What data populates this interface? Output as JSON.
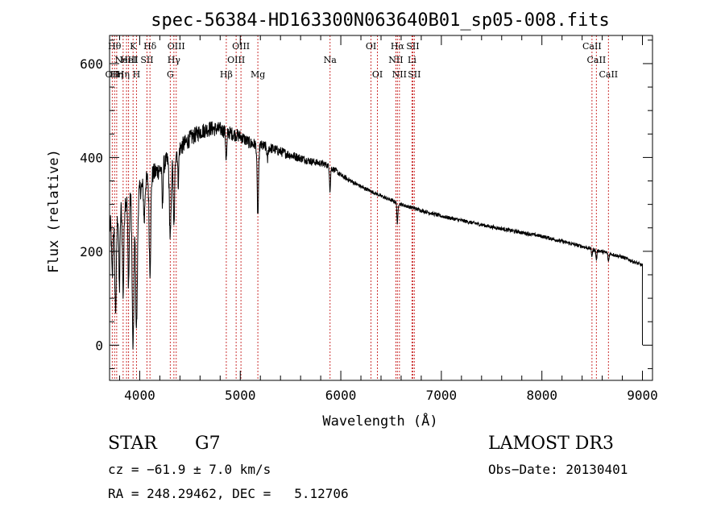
{
  "chart_data": {
    "type": "line",
    "title": "spec-56384-HD163300N063640B01_sp05-008.fits",
    "xlabel": "Wavelength (Å)",
    "ylabel": "Flux (relative)",
    "xlim": [
      3700,
      9100
    ],
    "ylim": [
      -75,
      660
    ],
    "xticks": [
      4000,
      5000,
      6000,
      7000,
      8000,
      9000
    ],
    "yticks": [
      0,
      200,
      400,
      600
    ],
    "xminor_step": 200,
    "yminor_step": 50,
    "colors": {
      "line_marker": "#cc3333",
      "spectrum": "#000000"
    },
    "line_markers": [
      {
        "wavelength": 3727,
        "label": "OII",
        "row": 2
      },
      {
        "wavelength": 3750,
        "label": "Hθ",
        "row": 0
      },
      {
        "wavelength": 3771,
        "label": "Hη",
        "row": 2
      },
      {
        "wavelength": 3835,
        "label": "Hη",
        "row": 2
      },
      {
        "wavelength": 3869,
        "label": "NeIII",
        "row": 1
      },
      {
        "wavelength": 3889,
        "label": "HeI",
        "row": 1
      },
      {
        "wavelength": 3934,
        "label": "K",
        "row": 0
      },
      {
        "wavelength": 3968,
        "label": "H",
        "row": 2
      },
      {
        "wavelength": 4072,
        "label": "SII",
        "row": 1
      },
      {
        "wavelength": 4102,
        "label": "Hδ",
        "row": 0
      },
      {
        "wavelength": 4304,
        "label": "G",
        "row": 2
      },
      {
        "wavelength": 4340,
        "label": "Hγ",
        "row": 1
      },
      {
        "wavelength": 4363,
        "label": "OIII",
        "row": 0
      },
      {
        "wavelength": 4861,
        "label": "Hβ",
        "row": 2
      },
      {
        "wavelength": 4959,
        "label": "OIII",
        "row": 1
      },
      {
        "wavelength": 5007,
        "label": "OIII",
        "row": 0
      },
      {
        "wavelength": 5175,
        "label": "Mg",
        "row": 2
      },
      {
        "wavelength": 5893,
        "label": "Na",
        "row": 1
      },
      {
        "wavelength": 6300,
        "label": "OI",
        "row": 0
      },
      {
        "wavelength": 6364,
        "label": "OI",
        "row": 2
      },
      {
        "wavelength": 6548,
        "label": "NII",
        "row": 1
      },
      {
        "wavelength": 6563,
        "label": "Hα",
        "row": 0
      },
      {
        "wavelength": 6583,
        "label": "NII",
        "row": 2
      },
      {
        "wavelength": 6708,
        "label": "Li",
        "row": 1
      },
      {
        "wavelength": 6716,
        "label": "SII",
        "row": 0
      },
      {
        "wavelength": 6731,
        "label": "SII",
        "row": 2
      },
      {
        "wavelength": 8498,
        "label": "CaII",
        "row": 0
      },
      {
        "wavelength": 8542,
        "label": "CaII",
        "row": 1
      },
      {
        "wavelength": 8662,
        "label": "CaII",
        "row": 2
      }
    ],
    "continuum_points": [
      [
        3700,
        250
      ],
      [
        3800,
        290
      ],
      [
        3900,
        320
      ],
      [
        4000,
        330
      ],
      [
        4100,
        360
      ],
      [
        4200,
        375
      ],
      [
        4300,
        400
      ],
      [
        4400,
        420
      ],
      [
        4500,
        440
      ],
      [
        4600,
        455
      ],
      [
        4700,
        462
      ],
      [
        4800,
        460
      ],
      [
        4900,
        452
      ],
      [
        5000,
        445
      ],
      [
        5100,
        430
      ],
      [
        5200,
        425
      ],
      [
        5300,
        420
      ],
      [
        5500,
        405
      ],
      [
        5700,
        392
      ],
      [
        5850,
        385
      ],
      [
        5950,
        372
      ],
      [
        6000,
        362
      ],
      [
        6200,
        338
      ],
      [
        6400,
        318
      ],
      [
        6600,
        300
      ],
      [
        6800,
        287
      ],
      [
        7000,
        275
      ],
      [
        7500,
        252
      ],
      [
        8000,
        232
      ],
      [
        8500,
        205
      ],
      [
        8800,
        188
      ],
      [
        9000,
        170
      ]
    ],
    "absorption_features": [
      {
        "center": 3727,
        "depth": 120,
        "width": 6
      },
      {
        "center": 3760,
        "depth": 200,
        "width": 8
      },
      {
        "center": 3798,
        "depth": 170,
        "width": 6
      },
      {
        "center": 3835,
        "depth": 190,
        "width": 7
      },
      {
        "center": 3889,
        "depth": 180,
        "width": 7
      },
      {
        "center": 3934,
        "depth": 330,
        "width": 9
      },
      {
        "center": 3968,
        "depth": 290,
        "width": 9
      },
      {
        "center": 4045,
        "depth": 80,
        "width": 6
      },
      {
        "center": 4102,
        "depth": 200,
        "width": 8
      },
      {
        "center": 4226,
        "depth": 90,
        "width": 5
      },
      {
        "center": 4304,
        "depth": 170,
        "width": 9
      },
      {
        "center": 4340,
        "depth": 160,
        "width": 7
      },
      {
        "center": 4383,
        "depth": 70,
        "width": 5
      },
      {
        "center": 4861,
        "depth": 60,
        "width": 6
      },
      {
        "center": 5175,
        "depth": 150,
        "width": 7
      },
      {
        "center": 5270,
        "depth": 30,
        "width": 5
      },
      {
        "center": 5893,
        "depth": 50,
        "width": 5
      },
      {
        "center": 6563,
        "depth": 45,
        "width": 5
      },
      {
        "center": 8498,
        "depth": 15,
        "width": 5
      },
      {
        "center": 8542,
        "depth": 20,
        "width": 5
      },
      {
        "center": 8662,
        "depth": 18,
        "width": 5
      }
    ],
    "spectrum_end": {
      "wavelength": 9000,
      "value": 0
    },
    "noise_amplitude": {
      "blue": 25,
      "red": 4
    }
  },
  "info": {
    "object_type": "STAR",
    "subclass": "G7",
    "survey": "LAMOST DR3",
    "redshift": "cz = −61.9 ± 7.0 km/s",
    "obs_date": "Obs−Date: 20130401",
    "coords": "RA = 248.29462, DEC =   5.12706"
  }
}
